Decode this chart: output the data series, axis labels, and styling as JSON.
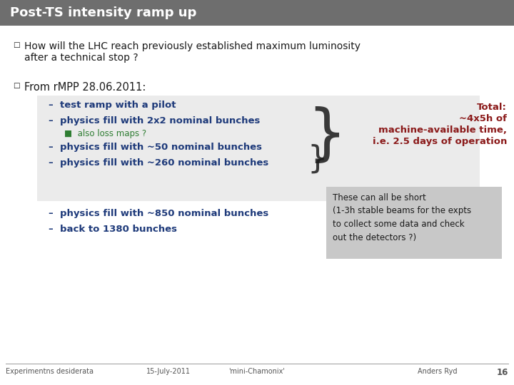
{
  "title": "Post-TS intensity ramp up",
  "title_bg": "#737373",
  "title_color": "#ffffff",
  "slide_bg": "#ffffff",
  "bullet1_text_line1": "How will the LHC reach previously established maximum luminosity",
  "bullet1_text_line2": "after a technical stop ?",
  "bullet2_text": "From rMPP 28.06.2011:",
  "item1": "–  test ramp with a pilot",
  "item2": "–  physics fill with 2x2 nominal bunches",
  "sub_item": "■  also loss maps ?",
  "item3": "–  physics fill with ~50 nominal bunches",
  "item4": "–  physics fill with ~260 nominal bunches",
  "item5": "–  physics fill with ~850 nominal bunches",
  "item6": "–  back to 1380 bunches",
  "total_line1": "Total:",
  "total_line2": "~4x5h of",
  "total_line3": "machine-available time,",
  "total_line4": "i.e. 2.5 days of operation",
  "note_text": "These can all be short\n(1-3h stable beams for the expts\nto collect some data and check\nout the detectors ?)",
  "footer_left": "Experimentns desiderata",
  "footer_center": "15-July-2011",
  "footer_mid": "'mini-Chamonix'",
  "footer_right": "Anders Ryd",
  "footer_page": "16",
  "blue_color": "#1e3a7a",
  "green_color": "#2e7d32",
  "red_color": "#8b1a1a",
  "gray_bg": "#ebebeb",
  "note_bg": "#c8c8c8",
  "black": "#1a1a1a",
  "footer_color": "#555555",
  "title_bg_gray": "#6e6e6e"
}
